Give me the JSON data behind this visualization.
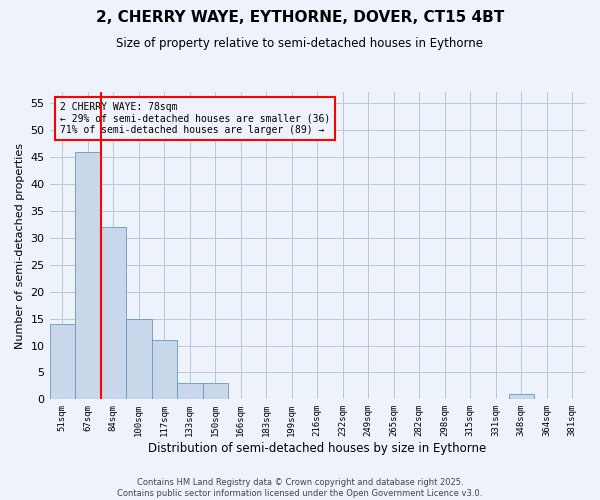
{
  "title1": "2, CHERRY WAYE, EYTHORNE, DOVER, CT15 4BT",
  "title2": "Size of property relative to semi-detached houses in Eythorne",
  "xlabel": "Distribution of semi-detached houses by size in Eythorne",
  "ylabel": "Number of semi-detached properties",
  "bins": [
    "51sqm",
    "67sqm",
    "84sqm",
    "100sqm",
    "117sqm",
    "133sqm",
    "150sqm",
    "166sqm",
    "183sqm",
    "199sqm",
    "216sqm",
    "232sqm",
    "249sqm",
    "265sqm",
    "282sqm",
    "298sqm",
    "315sqm",
    "331sqm",
    "348sqm",
    "364sqm",
    "381sqm"
  ],
  "values": [
    14,
    46,
    32,
    15,
    11,
    3,
    3,
    0,
    0,
    0,
    0,
    0,
    0,
    0,
    0,
    0,
    0,
    0,
    1,
    0,
    0
  ],
  "bar_color": "#c8d8ea",
  "bar_edge_color": "#6699bb",
  "ylim": [
    0,
    57
  ],
  "yticks": [
    0,
    5,
    10,
    15,
    20,
    25,
    30,
    35,
    40,
    45,
    50,
    55
  ],
  "annotation_title": "2 CHERRY WAYE: 78sqm",
  "annotation_line1": "← 29% of semi-detached houses are smaller (36)",
  "annotation_line2": "71% of semi-detached houses are larger (89) →",
  "footer1": "Contains HM Land Registry data © Crown copyright and database right 2025.",
  "footer2": "Contains public sector information licensed under the Open Government Licence v3.0.",
  "bg_color": "#eef2fa",
  "grid_color": "#b8c8dc"
}
